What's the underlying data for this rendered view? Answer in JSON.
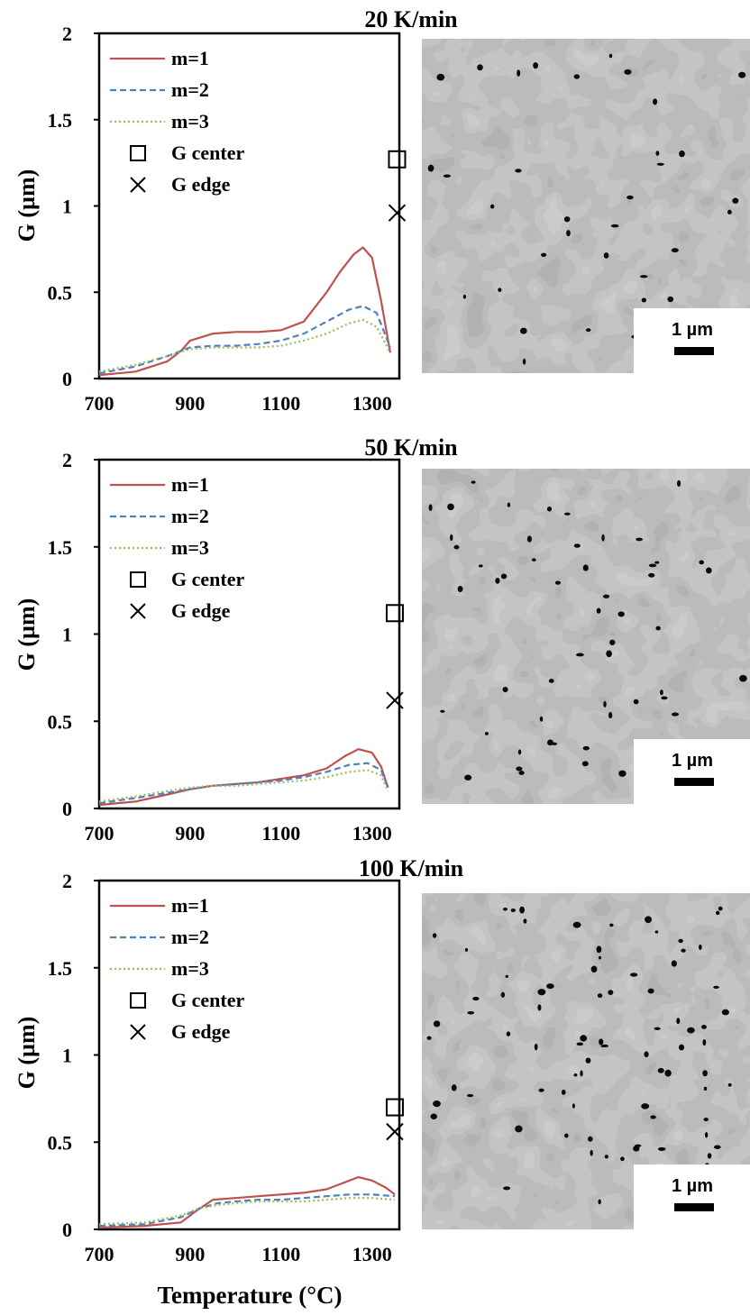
{
  "chart_data": [
    {
      "type": "line",
      "title": "20 K/min",
      "ylabel": "G (µm)",
      "xlabel": "",
      "xlim": [
        700,
        1360
      ],
      "ylim": [
        0,
        2
      ],
      "xticks": [
        "700",
        "900",
        "1100",
        "1300"
      ],
      "yticks": [
        "0",
        "0.5",
        "1",
        "1.5",
        "2"
      ],
      "legend": [
        "m=1",
        "m=2",
        "m=3",
        "G center",
        "G edge"
      ],
      "series": [
        {
          "name": "m=1",
          "color": "#c0504d",
          "style": "solid",
          "x": [
            700,
            780,
            850,
            880,
            900,
            950,
            1000,
            1050,
            1100,
            1150,
            1200,
            1230,
            1260,
            1280,
            1300,
            1320,
            1340
          ],
          "y": [
            0.02,
            0.04,
            0.1,
            0.16,
            0.22,
            0.26,
            0.27,
            0.27,
            0.28,
            0.33,
            0.5,
            0.62,
            0.72,
            0.76,
            0.7,
            0.45,
            0.15
          ]
        },
        {
          "name": "m=2",
          "color": "#4f81bd",
          "style": "dashed",
          "x": [
            700,
            780,
            850,
            900,
            950,
            1000,
            1050,
            1100,
            1150,
            1200,
            1250,
            1280,
            1310,
            1340
          ],
          "y": [
            0.03,
            0.07,
            0.13,
            0.18,
            0.19,
            0.19,
            0.2,
            0.22,
            0.26,
            0.33,
            0.4,
            0.42,
            0.38,
            0.18
          ]
        },
        {
          "name": "m=3",
          "color": "#9bbb59",
          "style": "dotted",
          "x": [
            700,
            780,
            850,
            900,
            950,
            1000,
            1050,
            1100,
            1150,
            1200,
            1250,
            1280,
            1310,
            1340
          ],
          "y": [
            0.04,
            0.08,
            0.13,
            0.17,
            0.18,
            0.18,
            0.18,
            0.19,
            0.22,
            0.26,
            0.32,
            0.34,
            0.3,
            0.15
          ]
        }
      ],
      "points": [
        {
          "name": "G center",
          "marker": "square",
          "x": 1355,
          "y": 1.27
        },
        {
          "name": "G edge",
          "marker": "cross",
          "x": 1355,
          "y": 0.96
        }
      ],
      "scale_bar": "1 µm"
    },
    {
      "type": "line",
      "title": "50 K/min",
      "ylabel": "G (µm)",
      "xlabel": "",
      "xlim": [
        700,
        1360
      ],
      "ylim": [
        0,
        2
      ],
      "xticks": [
        "700",
        "900",
        "1100",
        "1300"
      ],
      "yticks": [
        "0",
        "0.5",
        "1",
        "1.5",
        "2"
      ],
      "legend": [
        "m=1",
        "m=2",
        "m=3",
        "G center",
        "G edge"
      ],
      "series": [
        {
          "name": "m=1",
          "color": "#c0504d",
          "style": "solid",
          "x": [
            700,
            780,
            850,
            900,
            950,
            1000,
            1050,
            1100,
            1150,
            1200,
            1240,
            1270,
            1300,
            1320,
            1335
          ],
          "y": [
            0.02,
            0.04,
            0.08,
            0.11,
            0.13,
            0.14,
            0.15,
            0.17,
            0.19,
            0.23,
            0.3,
            0.34,
            0.32,
            0.24,
            0.12
          ]
        },
        {
          "name": "m=2",
          "color": "#4f81bd",
          "style": "dashed",
          "x": [
            700,
            780,
            850,
            900,
            950,
            1000,
            1050,
            1100,
            1150,
            1200,
            1250,
            1290,
            1320,
            1335
          ],
          "y": [
            0.03,
            0.06,
            0.09,
            0.11,
            0.13,
            0.14,
            0.15,
            0.16,
            0.18,
            0.21,
            0.25,
            0.26,
            0.22,
            0.12
          ]
        },
        {
          "name": "m=3",
          "color": "#9bbb59",
          "style": "dotted",
          "x": [
            700,
            780,
            850,
            900,
            950,
            1000,
            1050,
            1100,
            1150,
            1200,
            1250,
            1290,
            1320,
            1335
          ],
          "y": [
            0.04,
            0.07,
            0.1,
            0.12,
            0.13,
            0.13,
            0.14,
            0.15,
            0.16,
            0.18,
            0.21,
            0.22,
            0.19,
            0.1
          ]
        }
      ],
      "points": [
        {
          "name": "G center",
          "marker": "square",
          "x": 1350,
          "y": 1.12
        },
        {
          "name": "G edge",
          "marker": "cross",
          "x": 1350,
          "y": 0.62
        }
      ],
      "scale_bar": "1 µm"
    },
    {
      "type": "line",
      "title": "100 K/min",
      "ylabel": "G (µm)",
      "xlabel": "Temperature (°C)",
      "xlim": [
        700,
        1360
      ],
      "ylim": [
        0,
        2
      ],
      "xticks": [
        "700",
        "900",
        "1100",
        "1300"
      ],
      "yticks": [
        "0",
        "0.5",
        "1",
        "1.5",
        "2"
      ],
      "legend": [
        "m=1",
        "m=2",
        "m=3",
        "G center",
        "G edge"
      ],
      "series": [
        {
          "name": "m=1",
          "color": "#c0504d",
          "style": "solid",
          "x": [
            700,
            800,
            880,
            910,
            950,
            1000,
            1050,
            1100,
            1150,
            1200,
            1240,
            1270,
            1300,
            1330,
            1350
          ],
          "y": [
            0.01,
            0.02,
            0.04,
            0.1,
            0.17,
            0.18,
            0.19,
            0.2,
            0.21,
            0.23,
            0.27,
            0.3,
            0.28,
            0.24,
            0.2
          ]
        },
        {
          "name": "m=2",
          "color": "#4f81bd",
          "style": "dashed",
          "x": [
            700,
            800,
            880,
            920,
            960,
            1000,
            1050,
            1100,
            1150,
            1200,
            1250,
            1300,
            1350
          ],
          "y": [
            0.02,
            0.03,
            0.07,
            0.12,
            0.15,
            0.16,
            0.17,
            0.17,
            0.18,
            0.19,
            0.2,
            0.2,
            0.19
          ]
        },
        {
          "name": "m=3",
          "color": "#9bbb59",
          "style": "dotted",
          "x": [
            700,
            800,
            880,
            920,
            960,
            1000,
            1050,
            1100,
            1150,
            1200,
            1250,
            1300,
            1350
          ],
          "y": [
            0.03,
            0.04,
            0.08,
            0.12,
            0.14,
            0.15,
            0.16,
            0.16,
            0.16,
            0.17,
            0.18,
            0.18,
            0.17
          ]
        }
      ],
      "points": [
        {
          "name": "G center",
          "marker": "square",
          "x": 1350,
          "y": 0.7
        },
        {
          "name": "G edge",
          "marker": "cross",
          "x": 1350,
          "y": 0.56
        }
      ],
      "scale_bar": "1 µm"
    }
  ]
}
